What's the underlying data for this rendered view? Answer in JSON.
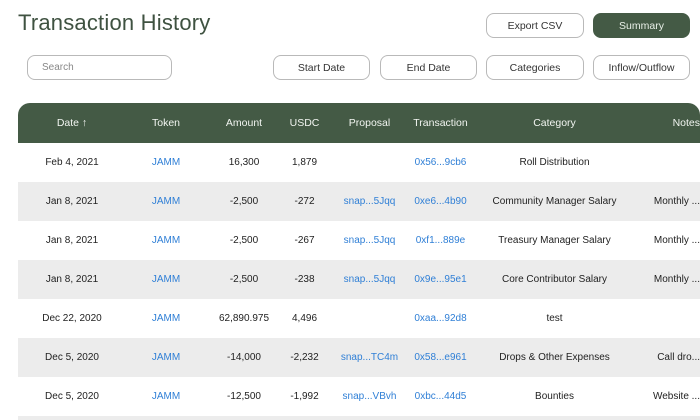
{
  "page": {
    "title": "Transaction History"
  },
  "toolbar": {
    "export_label": "Export CSV",
    "summary_label": "Summary",
    "search_placeholder": "Search",
    "start_date_label": "Start Date",
    "end_date_label": "End Date",
    "categories_label": "Categories",
    "inflow_outflow_label": "Inflow/Outflow"
  },
  "table": {
    "headers": {
      "date": "Date ↑",
      "token": "Token",
      "amount": "Amount",
      "usdc": "USDC",
      "proposal": "Proposal",
      "transaction": "Transaction",
      "category": "Category",
      "notes": "Notes"
    },
    "rows": [
      {
        "date": "Feb 4, 2021",
        "token": "JAMM",
        "amount": "16,300",
        "usdc": "1,879",
        "proposal": "",
        "transaction": "0x56...9cb6",
        "category": "Roll Distribution",
        "notes": ""
      },
      {
        "date": "Jan 8, 2021",
        "token": "JAMM",
        "amount": "-2,500",
        "usdc": "-272",
        "proposal": "snap...5Jqq",
        "transaction": "0xe6...4b90",
        "category": "Community Manager Salary",
        "notes": "Monthly ..."
      },
      {
        "date": "Jan 8, 2021",
        "token": "JAMM",
        "amount": "-2,500",
        "usdc": "-267",
        "proposal": "snap...5Jqq",
        "transaction": "0xf1...889e",
        "category": "Treasury Manager Salary",
        "notes": "Monthly ..."
      },
      {
        "date": "Jan 8, 2021",
        "token": "JAMM",
        "amount": "-2,500",
        "usdc": "-238",
        "proposal": "snap...5Jqq",
        "transaction": "0x9e...95e1",
        "category": "Core Contributor Salary",
        "notes": "Monthly ..."
      },
      {
        "date": "Dec 22, 2020",
        "token": "JAMM",
        "amount": "62,890.975",
        "usdc": "4,496",
        "proposal": "",
        "transaction": "0xaa...92d8",
        "category": "test",
        "notes": ""
      },
      {
        "date": "Dec 5, 2020",
        "token": "JAMM",
        "amount": "-14,000",
        "usdc": "-2,232",
        "proposal": "snap...TC4m",
        "transaction": "0x58...e961",
        "category": "Drops & Other Expenses",
        "notes": "Call dro..."
      },
      {
        "date": "Dec 5, 2020",
        "token": "JAMM",
        "amount": "-12,500",
        "usdc": "-1,992",
        "proposal": "snap...VBvh",
        "transaction": "0xbc...44d5",
        "category": "Bounties",
        "notes": "Website ..."
      }
    ]
  },
  "colors": {
    "accent": "#445a45",
    "link": "#2f7fd6",
    "row_alt": "#ececec"
  }
}
